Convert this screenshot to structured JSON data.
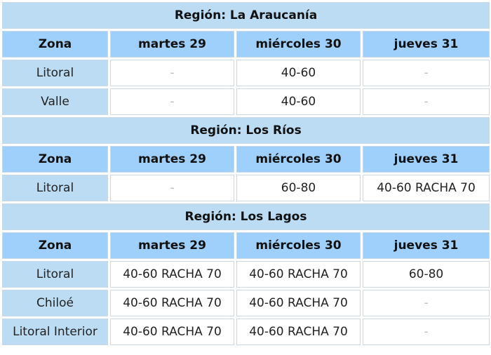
{
  "regions": [
    {
      "title": "Región: La Araucanía",
      "headers": [
        "Zona",
        "martes 29",
        "miércoles 30",
        "jueves 31"
      ],
      "rows": [
        {
          "zone": "Litoral",
          "cells": [
            "-",
            "40-60",
            "-"
          ]
        },
        {
          "zone": "Valle",
          "cells": [
            "-",
            "40-60",
            "-"
          ]
        }
      ]
    },
    {
      "title": "Región: Los Ríos",
      "headers": [
        "Zona",
        "martes 29",
        "miércoles 30",
        "jueves 31"
      ],
      "rows": [
        {
          "zone": "Litoral",
          "cells": [
            "-",
            "60-80",
            "40-60 RACHA 70"
          ]
        }
      ]
    },
    {
      "title": "Región: Los Lagos",
      "headers": [
        "Zona",
        "martes 29",
        "miércoles 30",
        "jueves 31"
      ],
      "rows": [
        {
          "zone": "Litoral",
          "cells": [
            "40-60 RACHA 70",
            "40-60 RACHA 70",
            "60-80"
          ]
        },
        {
          "zone": "Chiloé",
          "cells": [
            "40-60 RACHA 70",
            "40-60 RACHA 70",
            "-"
          ]
        },
        {
          "zone": "Litoral Interior",
          "cells": [
            "40-60 RACHA 70",
            "40-60 RACHA 70",
            "-"
          ]
        }
      ]
    }
  ]
}
